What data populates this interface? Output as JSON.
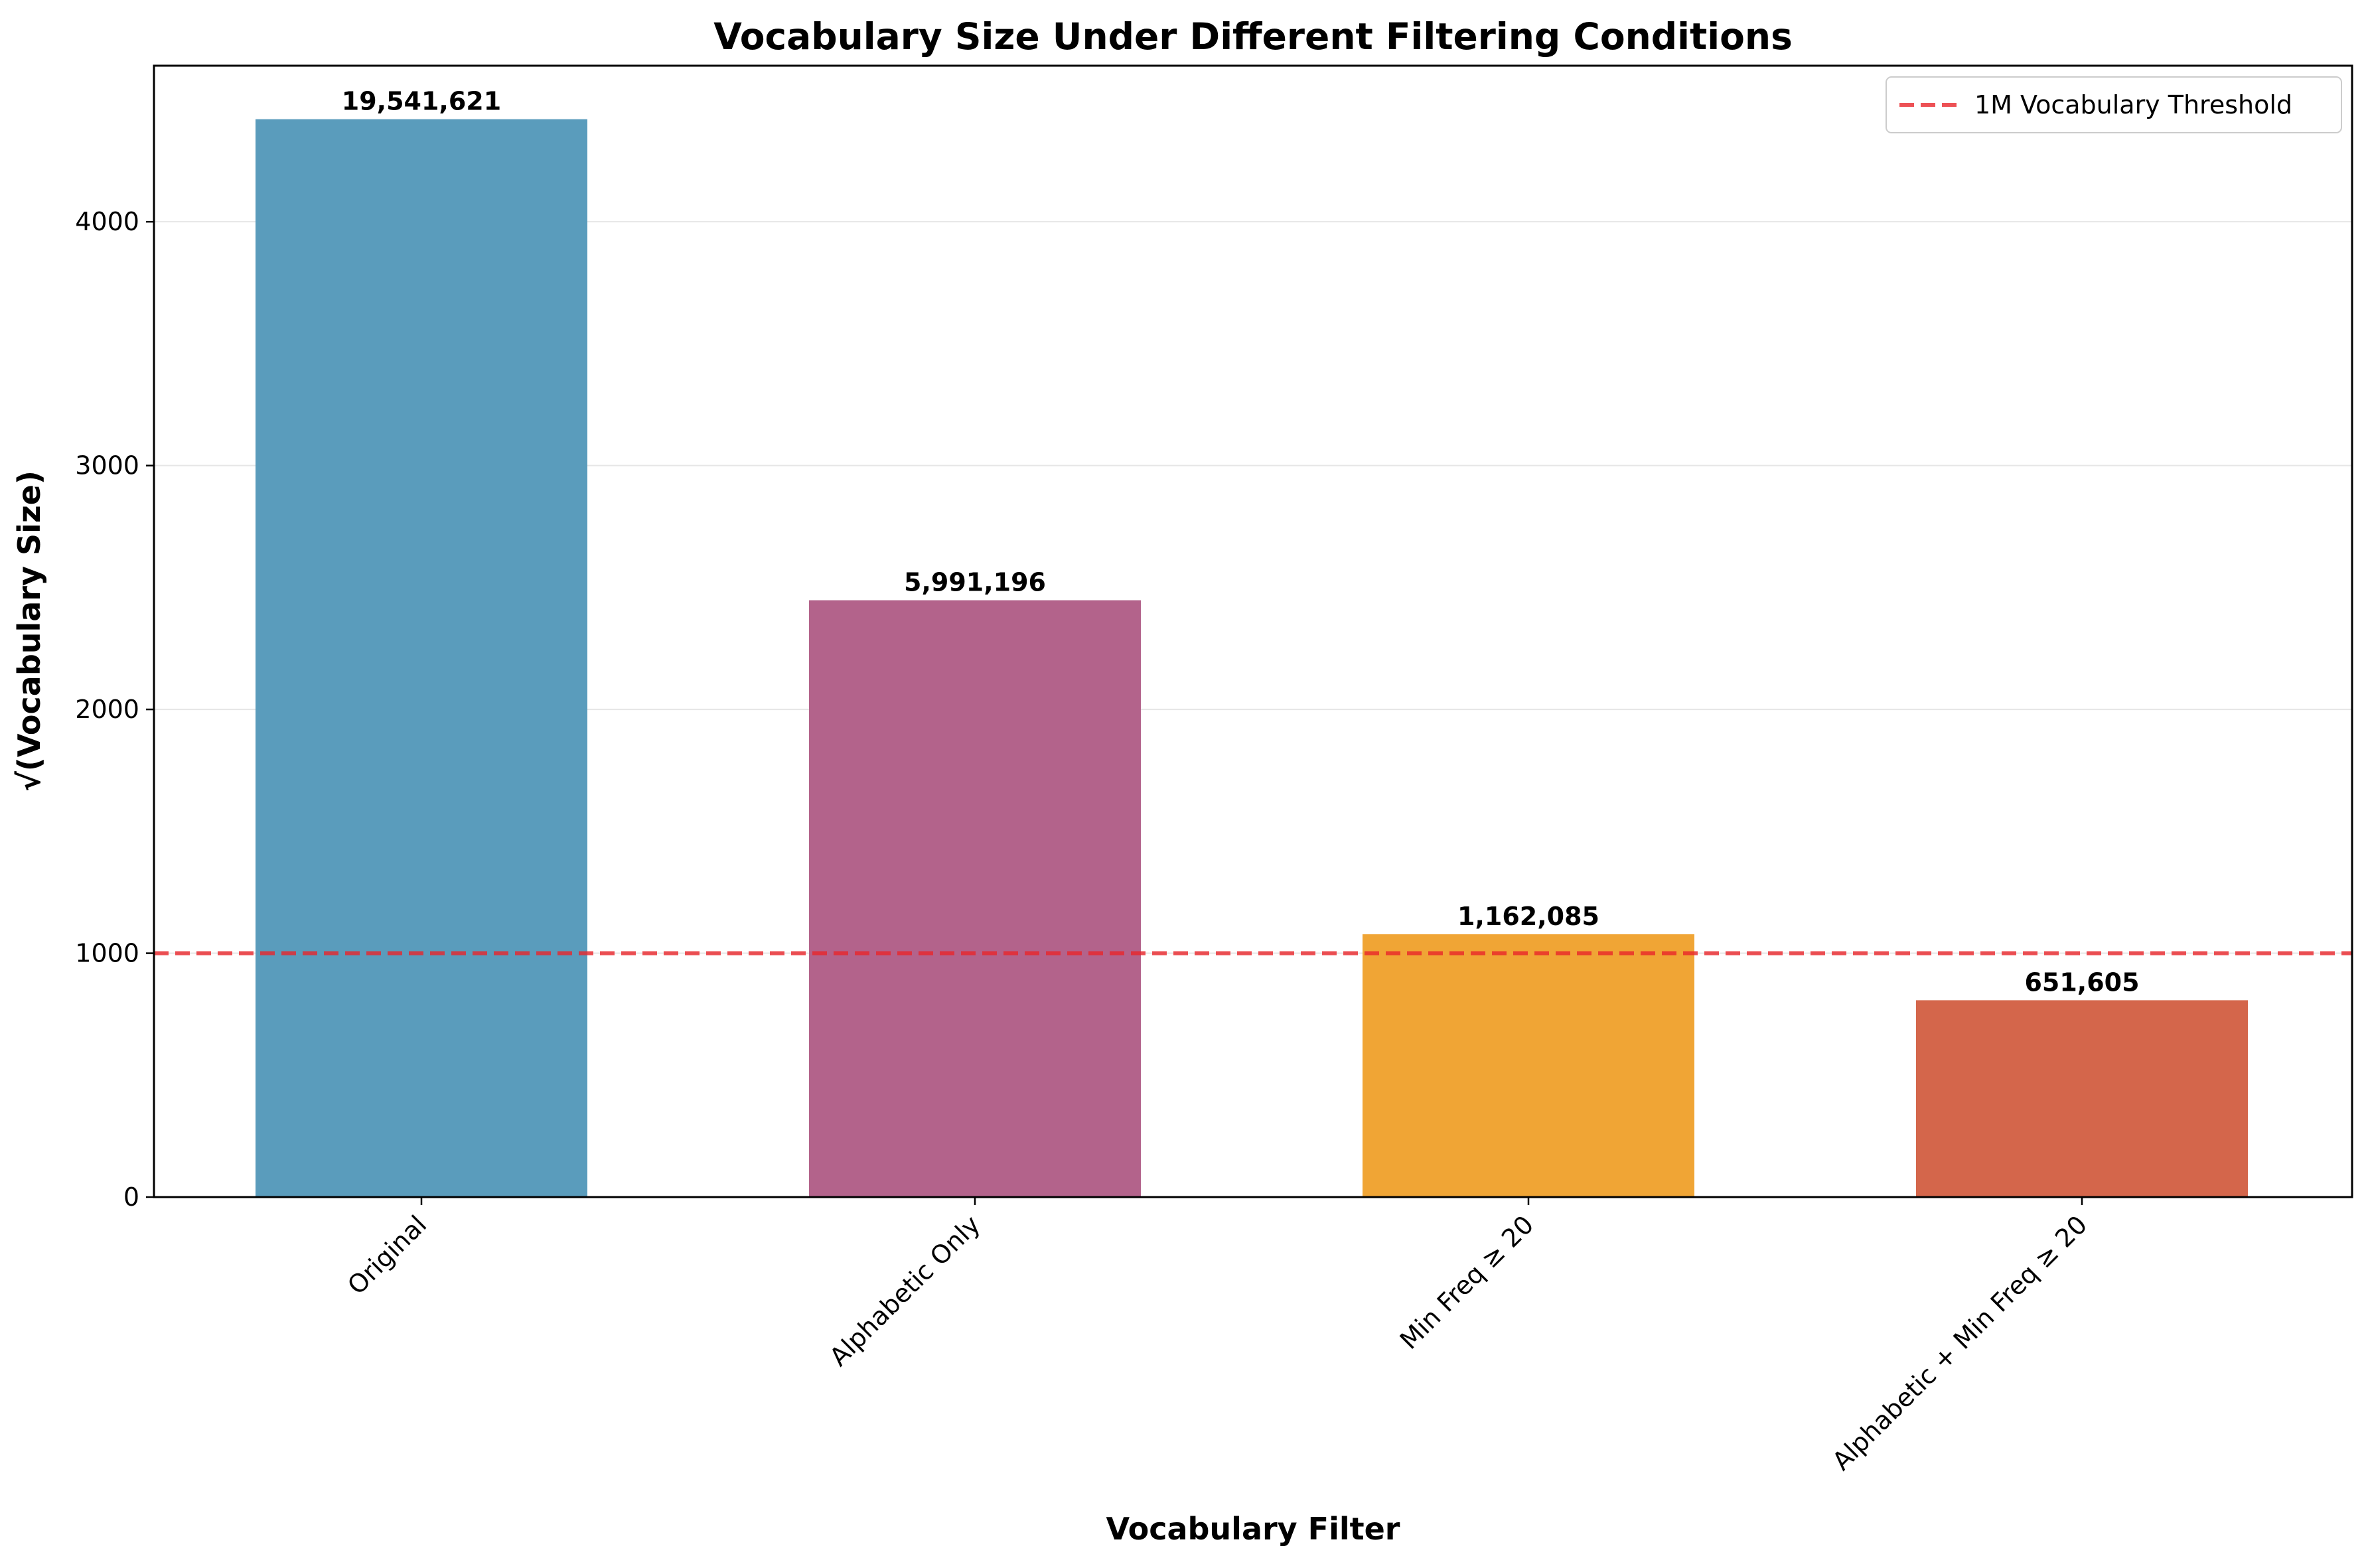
{
  "chart_data": {
    "type": "bar",
    "title": "Vocabulary Size Under Different Filtering Conditions",
    "xlabel": "Vocabulary Filter",
    "ylabel": "√(Vocabulary Size)",
    "categories": [
      "Original",
      "Alphabetic Only",
      "Min Freq ≥ 20",
      "Alphabetic + Min Freq ≥ 20"
    ],
    "values": [
      4420.6,
      2447.7,
      1078.0,
      807.2
    ],
    "data_labels": [
      "19,541,621",
      "5,991,196",
      "1,162,085",
      "651,605"
    ],
    "colors": [
      "#5a9cbc",
      "#b3638b",
      "#f0a535",
      "#d4664b"
    ],
    "ylim": [
      0,
      4640
    ],
    "yticks": [
      0,
      1000,
      2000,
      3000,
      4000
    ],
    "grid": "horizontal",
    "reference_line": {
      "value": 1000,
      "label": "1M Vocabulary Threshold",
      "color": "#e8262a",
      "style": "dashed"
    },
    "legend_position": "top-right"
  }
}
